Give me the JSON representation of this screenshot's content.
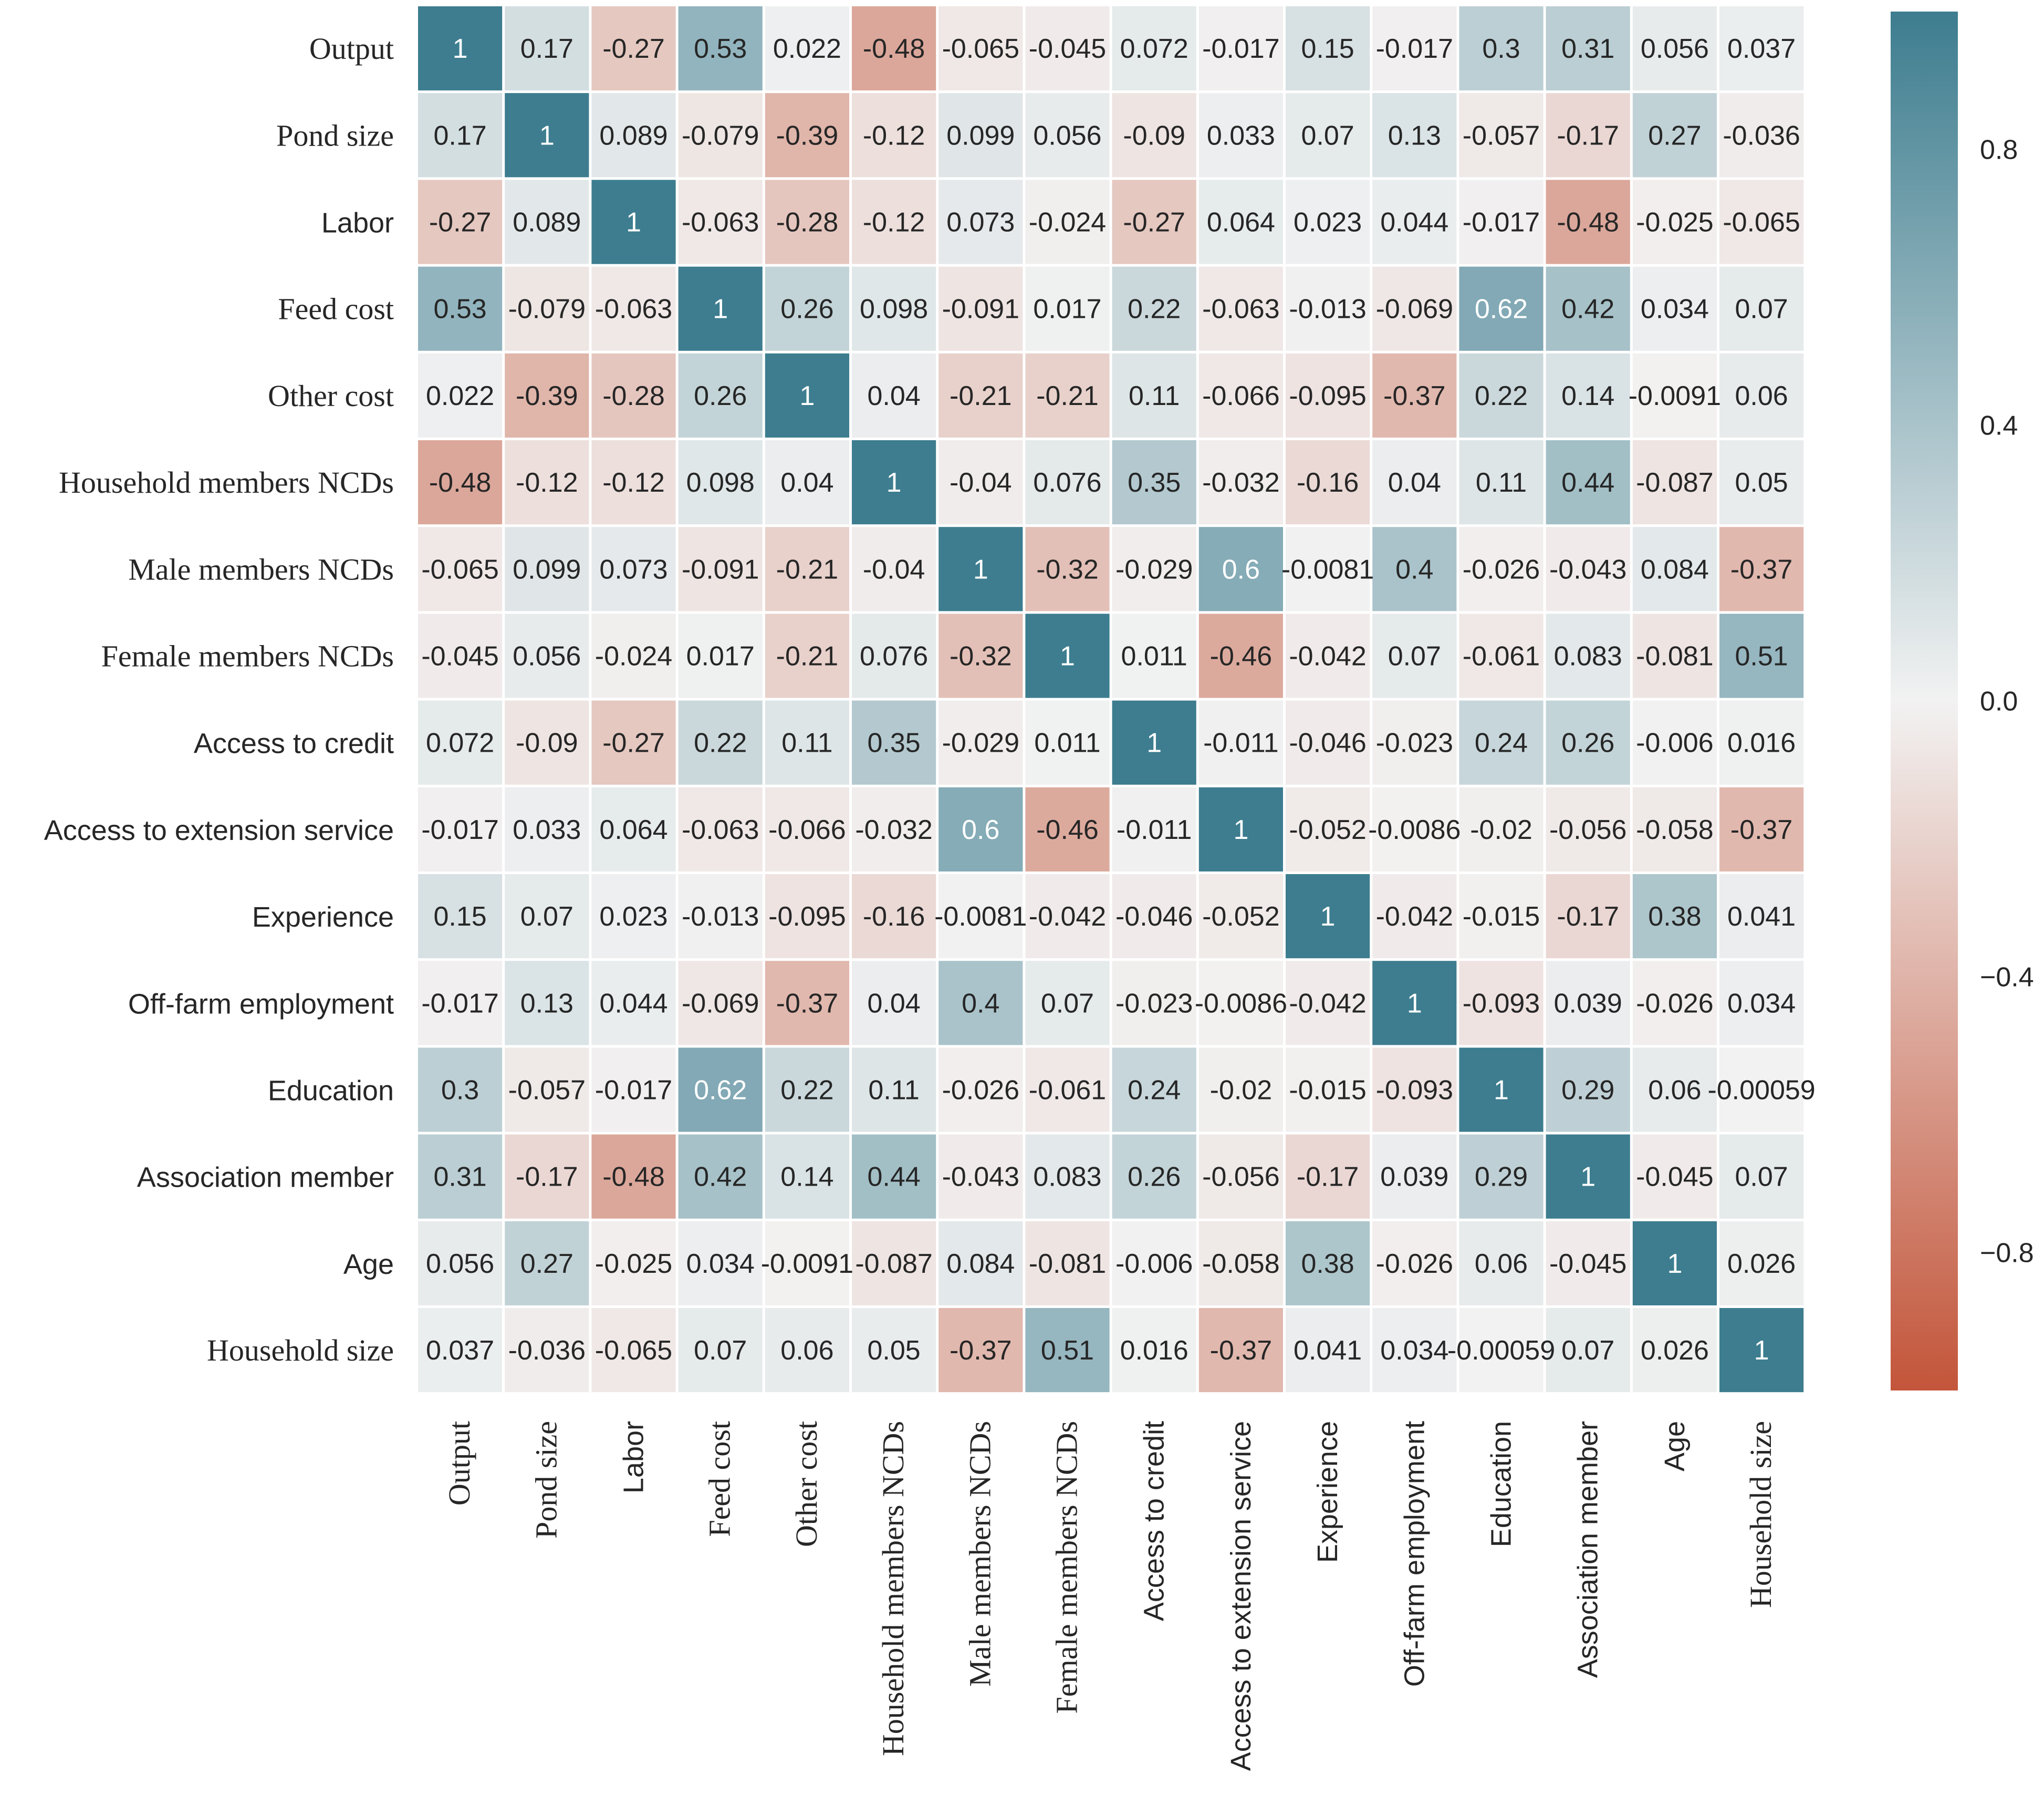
{
  "chart_data": {
    "type": "heatmap",
    "title": "",
    "labels": [
      "Output",
      "Pond size",
      "Labor",
      "Feed cost",
      "Other cost",
      "Household members NCDs",
      "Male members NCDs",
      "Female members NCDs",
      "Access to credit",
      "Access to extension service",
      "Experience",
      "Off-farm employment",
      "Education",
      "Association member",
      "Age",
      "Household size"
    ],
    "label_fonts": [
      "serif",
      "serif",
      "sans",
      "serif",
      "serif",
      "serif",
      "serif",
      "serif",
      "sans",
      "sans",
      "sans",
      "sans",
      "sans",
      "sans",
      "sans",
      "serif"
    ],
    "values": [
      [
        1,
        0.17,
        -0.27,
        0.53,
        0.022,
        -0.48,
        -0.065,
        -0.045,
        0.072,
        -0.017,
        0.15,
        -0.017,
        0.3,
        0.31,
        0.056,
        0.037
      ],
      [
        0.17,
        1,
        0.089,
        -0.079,
        -0.39,
        -0.12,
        0.099,
        0.056,
        -0.09,
        0.033,
        0.07,
        0.13,
        -0.057,
        -0.17,
        0.27,
        -0.036
      ],
      [
        -0.27,
        0.089,
        1,
        -0.063,
        -0.28,
        -0.12,
        0.073,
        -0.024,
        -0.27,
        0.064,
        0.023,
        0.044,
        -0.017,
        -0.48,
        -0.025,
        -0.065
      ],
      [
        0.53,
        -0.079,
        -0.063,
        1,
        0.26,
        0.098,
        -0.091,
        0.017,
        0.22,
        -0.063,
        -0.013,
        -0.069,
        0.62,
        0.42,
        0.034,
        0.07
      ],
      [
        0.022,
        -0.39,
        -0.28,
        0.26,
        1,
        0.04,
        -0.21,
        -0.21,
        0.11,
        -0.066,
        -0.095,
        -0.37,
        0.22,
        0.14,
        -0.0091,
        0.06
      ],
      [
        -0.48,
        -0.12,
        -0.12,
        0.098,
        0.04,
        1,
        -0.04,
        0.076,
        0.35,
        -0.032,
        -0.16,
        0.04,
        0.11,
        0.44,
        -0.087,
        0.05
      ],
      [
        -0.065,
        0.099,
        0.073,
        -0.091,
        -0.21,
        -0.04,
        1,
        -0.32,
        -0.029,
        0.6,
        -0.0081,
        0.4,
        -0.026,
        -0.043,
        0.084,
        -0.37
      ],
      [
        -0.045,
        0.056,
        -0.024,
        0.017,
        -0.21,
        0.076,
        -0.32,
        1,
        0.011,
        -0.46,
        -0.042,
        0.07,
        -0.061,
        0.083,
        -0.081,
        0.51
      ],
      [
        0.072,
        -0.09,
        -0.27,
        0.22,
        0.11,
        0.35,
        -0.029,
        0.011,
        1,
        -0.011,
        -0.046,
        -0.023,
        0.24,
        0.26,
        -0.006,
        0.016
      ],
      [
        -0.017,
        0.033,
        0.064,
        -0.063,
        -0.066,
        -0.032,
        0.6,
        -0.46,
        -0.011,
        1,
        -0.052,
        -0.0086,
        -0.02,
        -0.056,
        -0.058,
        -0.37
      ],
      [
        0.15,
        0.07,
        0.023,
        -0.013,
        -0.095,
        -0.16,
        -0.0081,
        -0.042,
        -0.046,
        -0.052,
        1,
        -0.042,
        -0.015,
        -0.17,
        0.38,
        0.041
      ],
      [
        -0.017,
        0.13,
        0.044,
        -0.069,
        -0.37,
        0.04,
        0.4,
        0.07,
        -0.023,
        -0.0086,
        -0.042,
        1,
        -0.093,
        0.039,
        -0.026,
        0.034
      ],
      [
        0.3,
        -0.057,
        -0.017,
        0.62,
        0.22,
        0.11,
        -0.026,
        -0.061,
        0.24,
        -0.02,
        -0.015,
        -0.093,
        1,
        0.29,
        0.06,
        -0.00059
      ],
      [
        0.31,
        -0.17,
        -0.48,
        0.42,
        0.14,
        0.44,
        -0.043,
        0.083,
        0.26,
        -0.056,
        -0.17,
        0.039,
        0.29,
        1,
        -0.045,
        0.07
      ],
      [
        0.056,
        0.27,
        -0.025,
        0.034,
        -0.0091,
        -0.087,
        0.084,
        -0.081,
        -0.006,
        -0.058,
        0.38,
        -0.026,
        0.06,
        -0.045,
        1,
        0.026
      ],
      [
        0.037,
        -0.036,
        -0.065,
        0.07,
        0.06,
        0.05,
        -0.37,
        0.51,
        0.016,
        -0.37,
        0.041,
        0.034,
        -0.00059,
        0.07,
        0.026,
        1
      ]
    ],
    "cell_text": [
      [
        "1",
        "0.17",
        "-0.27",
        "0.53",
        "0.022",
        "-0.48",
        "-0.065",
        "-0.045",
        "0.072",
        "-0.017",
        "0.15",
        "-0.017",
        "0.3",
        "0.31",
        "0.056",
        "0.037"
      ],
      [
        "0.17",
        "1",
        "0.089",
        "-0.079",
        "-0.39",
        "-0.12",
        "0.099",
        "0.056",
        "-0.09",
        "0.033",
        "0.07",
        "0.13",
        "-0.057",
        "-0.17",
        "0.27",
        "-0.036"
      ],
      [
        "-0.27",
        "0.089",
        "1",
        "-0.063",
        "-0.28",
        "-0.12",
        "0.073",
        "-0.024",
        "-0.27",
        "0.064",
        "0.023",
        "0.044",
        "-0.017",
        "-0.48",
        "-0.025",
        "-0.065"
      ],
      [
        "0.53",
        "-0.079",
        "-0.063",
        "1",
        "0.26",
        "0.098",
        "-0.091",
        "0.017",
        "0.22",
        "-0.063",
        "-0.013",
        "-0.069",
        "0.62",
        "0.42",
        "0.034",
        "0.07"
      ],
      [
        "0.022",
        "-0.39",
        "-0.28",
        "0.26",
        "1",
        "0.04",
        "-0.21",
        "-0.21",
        "0.11",
        "-0.066",
        "-0.095",
        "-0.37",
        "0.22",
        "0.14",
        "-0.0091",
        "0.06"
      ],
      [
        "-0.48",
        "-0.12",
        "-0.12",
        "0.098",
        "0.04",
        "1",
        "-0.04",
        "0.076",
        "0.35",
        "-0.032",
        "-0.16",
        "0.04",
        "0.11",
        "0.44",
        "-0.087",
        "0.05"
      ],
      [
        "-0.065",
        "0.099",
        "0.073",
        "-0.091",
        "-0.21",
        "-0.04",
        "1",
        "-0.32",
        "-0.029",
        "0.6",
        "-0.0081",
        "0.4",
        "-0.026",
        "-0.043",
        "0.084",
        "-0.37"
      ],
      [
        "-0.045",
        "0.056",
        "-0.024",
        "0.017",
        "-0.21",
        "0.076",
        "-0.32",
        "1",
        "0.011",
        "-0.46",
        "-0.042",
        "0.07",
        "-0.061",
        "0.083",
        "-0.081",
        "0.51"
      ],
      [
        "0.072",
        "-0.09",
        "-0.27",
        "0.22",
        "0.11",
        "0.35",
        "-0.029",
        "0.011",
        "1",
        "-0.011",
        "-0.046",
        "-0.023",
        "0.24",
        "0.26",
        "-0.006",
        "0.016"
      ],
      [
        "-0.017",
        "0.033",
        "0.064",
        "-0.063",
        "-0.066",
        "-0.032",
        "0.6",
        "-0.46",
        "-0.011",
        "1",
        "-0.052",
        "-0.0086",
        "-0.02",
        "-0.056",
        "-0.058",
        "-0.37"
      ],
      [
        "0.15",
        "0.07",
        "0.023",
        "-0.013",
        "-0.095",
        "-0.16",
        "-0.0081",
        "-0.042",
        "-0.046",
        "-0.052",
        "1",
        "-0.042",
        "-0.015",
        "-0.17",
        "0.38",
        "0.041"
      ],
      [
        "-0.017",
        "0.13",
        "0.044",
        "-0.069",
        "-0.37",
        "0.04",
        "0.4",
        "0.07",
        "-0.023",
        "-0.0086",
        "-0.042",
        "1",
        "-0.093",
        "0.039",
        "-0.026",
        "0.034"
      ],
      [
        "0.3",
        "-0.057",
        "-0.017",
        "0.62",
        "0.22",
        "0.11",
        "-0.026",
        "-0.061",
        "0.24",
        "-0.02",
        "-0.015",
        "-0.093",
        "1",
        "0.29",
        "0.06",
        "-0.00059"
      ],
      [
        "0.31",
        "-0.17",
        "-0.48",
        "0.42",
        "0.14",
        "0.44",
        "-0.043",
        "0.083",
        "0.26",
        "-0.056",
        "-0.17",
        "0.039",
        "0.29",
        "1",
        "-0.045",
        "0.07"
      ],
      [
        "0.056",
        "0.27",
        "-0.025",
        "0.034",
        "-0.0091",
        "-0.087",
        "0.084",
        "-0.081",
        "-0.006",
        "-0.058",
        "0.38",
        "-0.026",
        "0.06",
        "-0.045",
        "1",
        "0.026"
      ],
      [
        "0.037",
        "-0.036",
        "-0.065",
        "0.07",
        "0.06",
        "0.05",
        "-0.37",
        "0.51",
        "0.016",
        "-0.37",
        "0.041",
        "0.034",
        "-0.00059",
        "0.07",
        "0.026",
        "1"
      ]
    ],
    "colorbar": {
      "range": [
        -1,
        1
      ],
      "ticks": [
        0.8,
        0.4,
        0.0,
        -0.4,
        -0.8
      ],
      "tick_labels": [
        "0.8",
        "0.4",
        "0.0",
        "−0.4",
        "−0.8"
      ]
    },
    "colormap": {
      "negative": "#c3553a",
      "neutral": "#f2f2f2",
      "positive": "#3d7d8f"
    },
    "xlabel": "",
    "ylabel": ""
  }
}
